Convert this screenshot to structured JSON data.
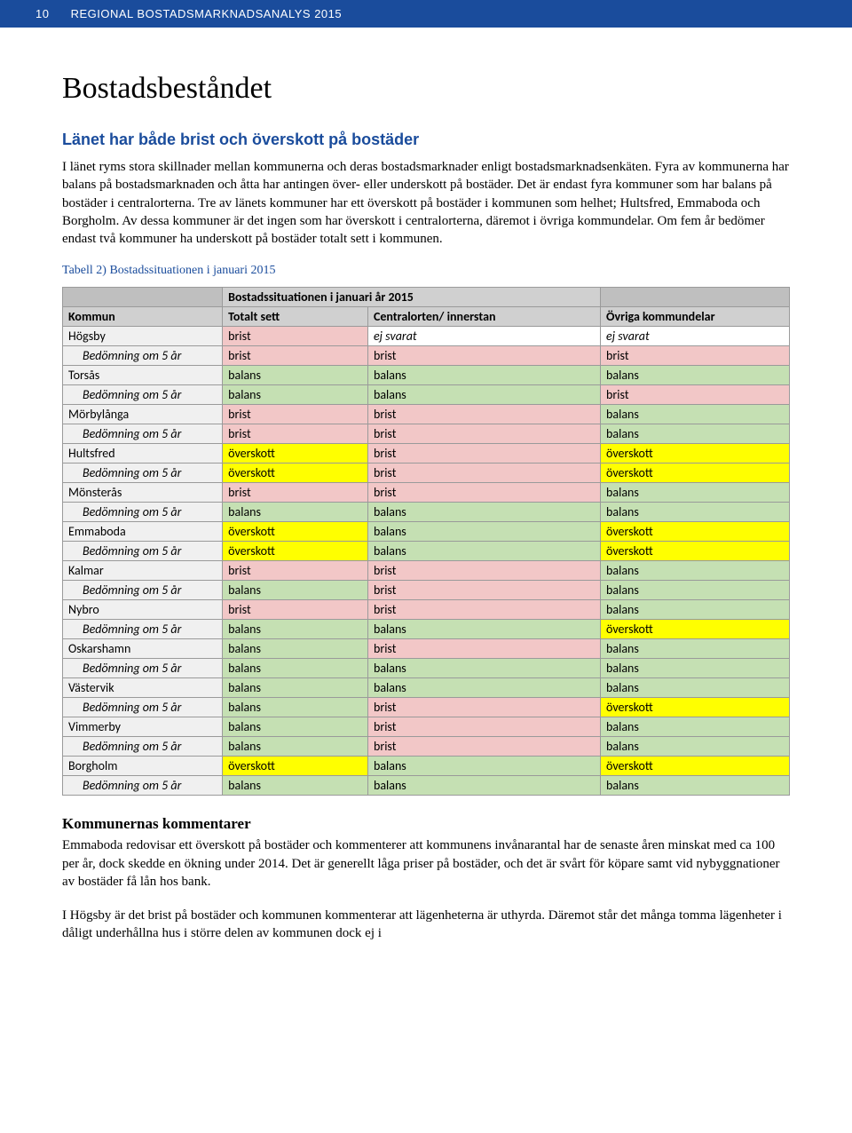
{
  "header": {
    "page_number": "10",
    "doc_title": "REGIONAL BOSTADSMARKNADSANALYS 2015"
  },
  "title": "Bostadsbeståndet",
  "subheading": "Länet har både brist och överskott på bostäder",
  "para1": "I länet ryms stora skillnader mellan kommunerna och deras bostadsmarknader enligt bostadsmarknadsenkäten. Fyra av kommunerna har balans på bostadsmarknaden och åtta har antingen över- eller underskott på bostäder. Det är endast fyra kommuner som har balans på bostäder i centralorterna. Tre av länets kommuner har ett överskott på bostäder i kommunen som helhet; Hultsfred, Emmaboda och Borgholm. Av dessa kommuner är det ingen som har överskott i centralorterna, däremot i övriga kommundelar. Om fem år bedömer endast två kommuner ha underskott på bostäder totalt sett i kommunen.",
  "table_caption": "Tabell 2) Bostadssituationen i januari 2015",
  "table_banner": "Bostadssituationen i januari år 2015",
  "columns": {
    "c0": "Kommun",
    "c1": "Totalt sett",
    "c2": "Centralorten/ innerstan",
    "c3": "Övriga kommundelar"
  },
  "bedomning_label": "Bedömning om 5 år",
  "status_labels": {
    "balans": "balans",
    "brist": "brist",
    "overskott": "överskott",
    "ejsvarat": "ej svarat"
  },
  "cell_colors": {
    "balans": "#c5e0b3",
    "brist": "#f2c7c7",
    "overskott": "#ffff00",
    "ejsvarat": "#ffffff",
    "header_grey": "#bfbfbf",
    "row_grey": "#f0f0f0"
  },
  "rows": [
    {
      "kommun": "Högsby",
      "now": [
        "brist",
        "ejsvarat",
        "ejsvarat"
      ],
      "b5": [
        "brist",
        "brist",
        "brist"
      ]
    },
    {
      "kommun": "Torsås",
      "now": [
        "balans",
        "balans",
        "balans"
      ],
      "b5": [
        "balans",
        "balans",
        "brist"
      ]
    },
    {
      "kommun": "Mörbylånga",
      "now": [
        "brist",
        "brist",
        "balans"
      ],
      "b5": [
        "brist",
        "brist",
        "balans"
      ]
    },
    {
      "kommun": "Hultsfred",
      "now": [
        "overskott",
        "brist",
        "overskott"
      ],
      "b5": [
        "overskott",
        "brist",
        "overskott"
      ]
    },
    {
      "kommun": "Mönsterås",
      "now": [
        "brist",
        "brist",
        "balans"
      ],
      "b5": [
        "balans",
        "balans",
        "balans"
      ]
    },
    {
      "kommun": "Emmaboda",
      "now": [
        "overskott",
        "balans",
        "overskott"
      ],
      "b5": [
        "overskott",
        "balans",
        "overskott"
      ]
    },
    {
      "kommun": "Kalmar",
      "now": [
        "brist",
        "brist",
        "balans"
      ],
      "b5": [
        "balans",
        "brist",
        "balans"
      ]
    },
    {
      "kommun": "Nybro",
      "now": [
        "brist",
        "brist",
        "balans"
      ],
      "b5": [
        "balans",
        "balans",
        "overskott"
      ]
    },
    {
      "kommun": "Oskarshamn",
      "now": [
        "balans",
        "brist",
        "balans"
      ],
      "b5": [
        "balans",
        "balans",
        "balans"
      ]
    },
    {
      "kommun": "Västervik",
      "now": [
        "balans",
        "balans",
        "balans"
      ],
      "b5": [
        "balans",
        "brist",
        "overskott"
      ]
    },
    {
      "kommun": "Vimmerby",
      "now": [
        "balans",
        "brist",
        "balans"
      ],
      "b5": [
        "balans",
        "brist",
        "balans"
      ]
    },
    {
      "kommun": "Borgholm",
      "now": [
        "overskott",
        "balans",
        "overskott"
      ],
      "b5": [
        "balans",
        "balans",
        "balans"
      ]
    }
  ],
  "comments_heading": "Kommunernas kommentarer",
  "comments_p1": "Emmaboda redovisar ett överskott på bostäder och kommenterer att kommunens invånarantal har de senaste åren minskat med ca 100 per år, dock skedde en ökning under 2014. Det är generellt låga priser på bostäder, och det är svårt för köpare samt vid nybyggnationer av bostäder få lån hos bank.",
  "comments_p2": "I Högsby är det brist på bostäder och kommunen kommenterar att lägenheterna är uthyrda. Däremot står det många tomma lägenheter i dåligt underhållna hus i större delen av kommunen dock ej i"
}
